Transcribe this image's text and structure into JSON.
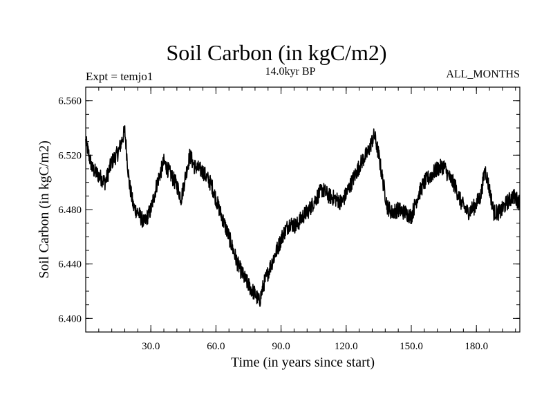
{
  "header": {
    "title": "Soil Carbon (in kgC/m2)",
    "subtitle": "14.0kyr BP",
    "left_label": "Expt = temjo1",
    "right_label": "ALL_MONTHS"
  },
  "chart_data": {
    "type": "line",
    "title": "Soil Carbon (in kgC/m2)",
    "xlabel": "Time (in years since start)",
    "ylabel": "Soil Carbon (in kgC/m2)",
    "xlim": [
      0,
      200
    ],
    "ylim": [
      6.39,
      6.57
    ],
    "xticks": [
      30.0,
      60.0,
      90.0,
      120.0,
      150.0,
      180.0
    ],
    "xtick_labels": [
      "30.0",
      "60.0",
      "90.0",
      "120.0",
      "150.0",
      "180.0"
    ],
    "yticks": [
      6.4,
      6.44,
      6.48,
      6.52,
      6.56
    ],
    "ytick_labels": [
      "6.400",
      "6.440",
      "6.480",
      "6.520",
      "6.560"
    ],
    "grid": false,
    "line_color": "#000000",
    "x": [
      0,
      3,
      6,
      9,
      12,
      15,
      18,
      20,
      22,
      24,
      27,
      30,
      33,
      36,
      39,
      42,
      44,
      46,
      48,
      50,
      54,
      58,
      62,
      66,
      70,
      73,
      76,
      78,
      80,
      82,
      85,
      88,
      91,
      94,
      97,
      100,
      103,
      106,
      109,
      112,
      115,
      118,
      121,
      124,
      127,
      130,
      133,
      135,
      137,
      139,
      141,
      144,
      147,
      150,
      153,
      156,
      159,
      162,
      165,
      167,
      170,
      173,
      176,
      179,
      182,
      184,
      186,
      188,
      191,
      194,
      197,
      200
    ],
    "y": [
      6.53,
      6.51,
      6.505,
      6.5,
      6.515,
      6.522,
      6.538,
      6.5,
      6.482,
      6.478,
      6.47,
      6.48,
      6.5,
      6.515,
      6.506,
      6.498,
      6.488,
      6.505,
      6.52,
      6.512,
      6.508,
      6.498,
      6.478,
      6.46,
      6.44,
      6.43,
      6.422,
      6.418,
      6.412,
      6.425,
      6.438,
      6.45,
      6.462,
      6.47,
      6.468,
      6.475,
      6.48,
      6.488,
      6.495,
      6.49,
      6.488,
      6.485,
      6.495,
      6.505,
      6.515,
      6.522,
      6.535,
      6.52,
      6.5,
      6.482,
      6.478,
      6.48,
      6.478,
      6.475,
      6.49,
      6.5,
      6.505,
      6.51,
      6.512,
      6.505,
      6.498,
      6.485,
      6.478,
      6.482,
      6.49,
      6.51,
      6.495,
      6.478,
      6.478,
      6.485,
      6.49,
      6.485
    ]
  }
}
